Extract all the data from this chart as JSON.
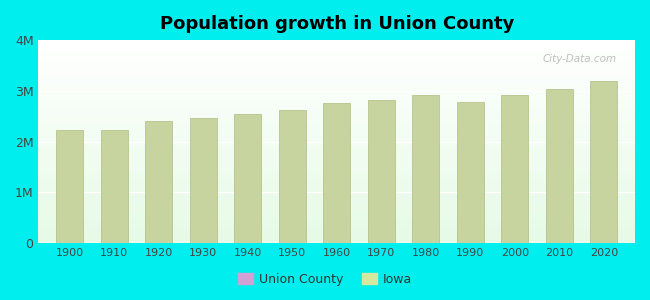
{
  "title": "Population growth in Union County",
  "background_color": "#00EEEE",
  "bar_color": "#C8D4A0",
  "bar_edge_color": "#B0BC80",
  "years": [
    1900,
    1910,
    1920,
    1930,
    1940,
    1950,
    1960,
    1970,
    1980,
    1990,
    2000,
    2010,
    2020
  ],
  "iowa_values": [
    2231853,
    2224771,
    2404021,
    2470939,
    2538268,
    2621073,
    2757537,
    2824376,
    2913808,
    2776755,
    2926324,
    3046355,
    3190369
  ],
  "ylim": [
    0,
    4000000
  ],
  "yticks": [
    0,
    1000000,
    2000000,
    3000000,
    4000000
  ],
  "ytick_labels": [
    "0",
    "1M",
    "2M",
    "3M",
    "4M"
  ],
  "legend_union_color": "#D4A0D4",
  "legend_iowa_color": "#D4E8A0",
  "watermark": "City-Data.com"
}
